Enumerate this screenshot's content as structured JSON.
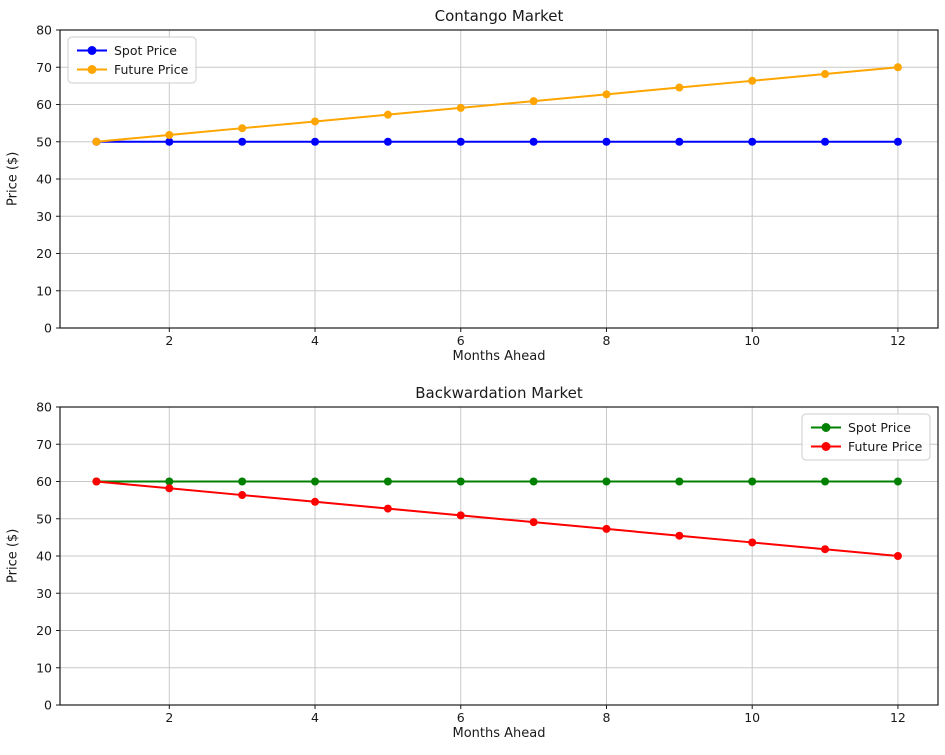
{
  "figure": {
    "background": "#ffffff",
    "text_color": "#1a1a1a",
    "grid_color": "#c8c8c8",
    "spine_color": "#1a1a1a"
  },
  "chart_data": [
    {
      "type": "line",
      "title": "Contango Market",
      "xlabel": "Months Ahead",
      "ylabel": "Price ($)",
      "x": [
        1,
        2,
        3,
        4,
        5,
        6,
        7,
        8,
        9,
        10,
        11,
        12
      ],
      "xticks": [
        2,
        4,
        6,
        8,
        10,
        12
      ],
      "yticks": [
        0,
        10,
        20,
        30,
        40,
        50,
        60,
        70,
        80
      ],
      "xlim": [
        0.5,
        12.55
      ],
      "ylim": [
        0,
        80
      ],
      "grid": true,
      "legend": {
        "position": "upper-left",
        "items": [
          "Spot Price",
          "Future Price"
        ]
      },
      "series": [
        {
          "name": "Spot Price",
          "color": "#0000ff",
          "values": [
            50,
            50,
            50,
            50,
            50,
            50,
            50,
            50,
            50,
            50,
            50,
            50
          ]
        },
        {
          "name": "Future Price",
          "color": "#ffa500",
          "values": [
            50.0,
            51.82,
            53.64,
            55.45,
            57.27,
            59.09,
            60.91,
            62.73,
            64.55,
            66.36,
            68.18,
            70.0
          ]
        }
      ]
    },
    {
      "type": "line",
      "title": "Backwardation Market",
      "xlabel": "Months Ahead",
      "ylabel": "Price ($)",
      "x": [
        1,
        2,
        3,
        4,
        5,
        6,
        7,
        8,
        9,
        10,
        11,
        12
      ],
      "xticks": [
        2,
        4,
        6,
        8,
        10,
        12
      ],
      "yticks": [
        0,
        10,
        20,
        30,
        40,
        50,
        60,
        70,
        80
      ],
      "xlim": [
        0.5,
        12.55
      ],
      "ylim": [
        0,
        80
      ],
      "grid": true,
      "legend": {
        "position": "upper-right",
        "items": [
          "Spot Price",
          "Future Price"
        ]
      },
      "series": [
        {
          "name": "Spot Price",
          "color": "#008000",
          "values": [
            60,
            60,
            60,
            60,
            60,
            60,
            60,
            60,
            60,
            60,
            60,
            60
          ]
        },
        {
          "name": "Future Price",
          "color": "#ff0000",
          "values": [
            60.0,
            58.18,
            56.36,
            54.55,
            52.73,
            50.91,
            49.09,
            47.27,
            45.45,
            43.64,
            41.82,
            40.0
          ]
        }
      ]
    }
  ]
}
